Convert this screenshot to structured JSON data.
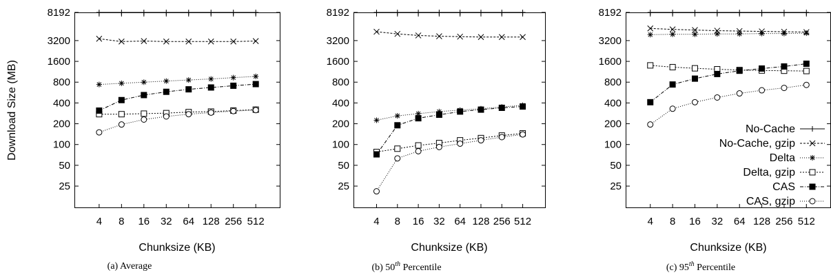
{
  "chart_data": [
    {
      "type": "line",
      "panel_caption": "(a)  Average",
      "xlabel": "Chunksize (KB)",
      "ylabel": "Download Size (MB)",
      "yscale": "log",
      "categories": [
        "4",
        "8",
        "16",
        "32",
        "64",
        "128",
        "256",
        "512"
      ],
      "yticks": [
        "25",
        "50",
        "100",
        "200",
        "400",
        "800",
        "1600",
        "3200",
        "8192"
      ],
      "ylim": [
        12,
        8192
      ],
      "series": [
        {
          "name": "No-Cache",
          "marker": "plus",
          "values": [
            8192,
            8192,
            8192,
            8192,
            8192,
            8192,
            8192,
            8192
          ]
        },
        {
          "name": "No-Cache, gzip",
          "marker": "x",
          "values": [
            3400,
            3100,
            3150,
            3100,
            3100,
            3100,
            3100,
            3150
          ]
        },
        {
          "name": "Delta",
          "marker": "star",
          "values": [
            740,
            770,
            800,
            830,
            860,
            890,
            930,
            970
          ]
        },
        {
          "name": "Delta, gzip",
          "marker": "open-square",
          "values": [
            275,
            275,
            280,
            285,
            295,
            300,
            310,
            320
          ]
        },
        {
          "name": "CAS",
          "marker": "filled-square",
          "values": [
            310,
            440,
            520,
            580,
            630,
            670,
            710,
            750
          ]
        },
        {
          "name": "CAS, gzip",
          "marker": "open-circle",
          "values": [
            150,
            195,
            230,
            255,
            275,
            290,
            305,
            315
          ]
        }
      ],
      "legend": "none",
      "grid": false
    },
    {
      "type": "line",
      "panel_caption_parts": [
        "(b)  50",
        "th",
        " Percentile"
      ],
      "xlabel": "Chunksize (KB)",
      "ylabel": "",
      "yscale": "log",
      "categories": [
        "4",
        "8",
        "16",
        "32",
        "64",
        "128",
        "256",
        "512"
      ],
      "yticks": [
        "25",
        "50",
        "100",
        "200",
        "400",
        "800",
        "1600",
        "3200",
        "8192"
      ],
      "ylim": [
        12,
        8192
      ],
      "series": [
        {
          "name": "No-Cache",
          "marker": "plus",
          "values": [
            8192,
            8192,
            8192,
            8192,
            8192,
            8192,
            8192,
            8192
          ]
        },
        {
          "name": "No-Cache, gzip",
          "marker": "x",
          "values": [
            4300,
            4000,
            3800,
            3700,
            3650,
            3600,
            3600,
            3600
          ]
        },
        {
          "name": "Delta",
          "marker": "star",
          "values": [
            225,
            260,
            280,
            300,
            315,
            330,
            350,
            370
          ]
        },
        {
          "name": "Delta, gzip",
          "marker": "open-square",
          "values": [
            78,
            87,
            97,
            105,
            115,
            124,
            135,
            145
          ]
        },
        {
          "name": "CAS",
          "marker": "filled-square",
          "values": [
            72,
            190,
            240,
            270,
            300,
            320,
            340,
            355
          ]
        },
        {
          "name": "CAS, gzip",
          "marker": "open-circle",
          "values": [
            21,
            63,
            80,
            92,
            103,
            115,
            128,
            140
          ]
        }
      ],
      "legend": "none",
      "grid": false
    },
    {
      "type": "line",
      "panel_caption_parts": [
        "(c)  95",
        "th",
        " Percentile"
      ],
      "xlabel": "Chunksize (KB)",
      "ylabel": "",
      "yscale": "log",
      "categories": [
        "4",
        "8",
        "16",
        "32",
        "64",
        "128",
        "256",
        "512"
      ],
      "yticks": [
        "25",
        "50",
        "100",
        "200",
        "400",
        "800",
        "1600",
        "3200",
        "8192"
      ],
      "ylim": [
        12,
        8192
      ],
      "series": [
        {
          "name": "No-Cache",
          "marker": "plus",
          "values": [
            8192,
            8192,
            8192,
            8192,
            8192,
            8192,
            8192,
            8192
          ]
        },
        {
          "name": "No-Cache, gzip",
          "marker": "x",
          "values": [
            4800,
            4650,
            4550,
            4450,
            4400,
            4350,
            4300,
            4250
          ]
        },
        {
          "name": "Delta",
          "marker": "star",
          "values": [
            3900,
            3950,
            3950,
            4000,
            4000,
            4050,
            4050,
            4100
          ]
        },
        {
          "name": "Delta, gzip",
          "marker": "open-square",
          "values": [
            1400,
            1320,
            1270,
            1230,
            1200,
            1180,
            1170,
            1160
          ]
        },
        {
          "name": "CAS",
          "marker": "filled-square",
          "values": [
            410,
            740,
            900,
            1050,
            1170,
            1260,
            1350,
            1480
          ]
        },
        {
          "name": "CAS, gzip",
          "marker": "open-circle",
          "values": [
            195,
            330,
            410,
            480,
            550,
            610,
            660,
            730
          ]
        }
      ],
      "legend": "bottom-right",
      "grid": false
    }
  ]
}
